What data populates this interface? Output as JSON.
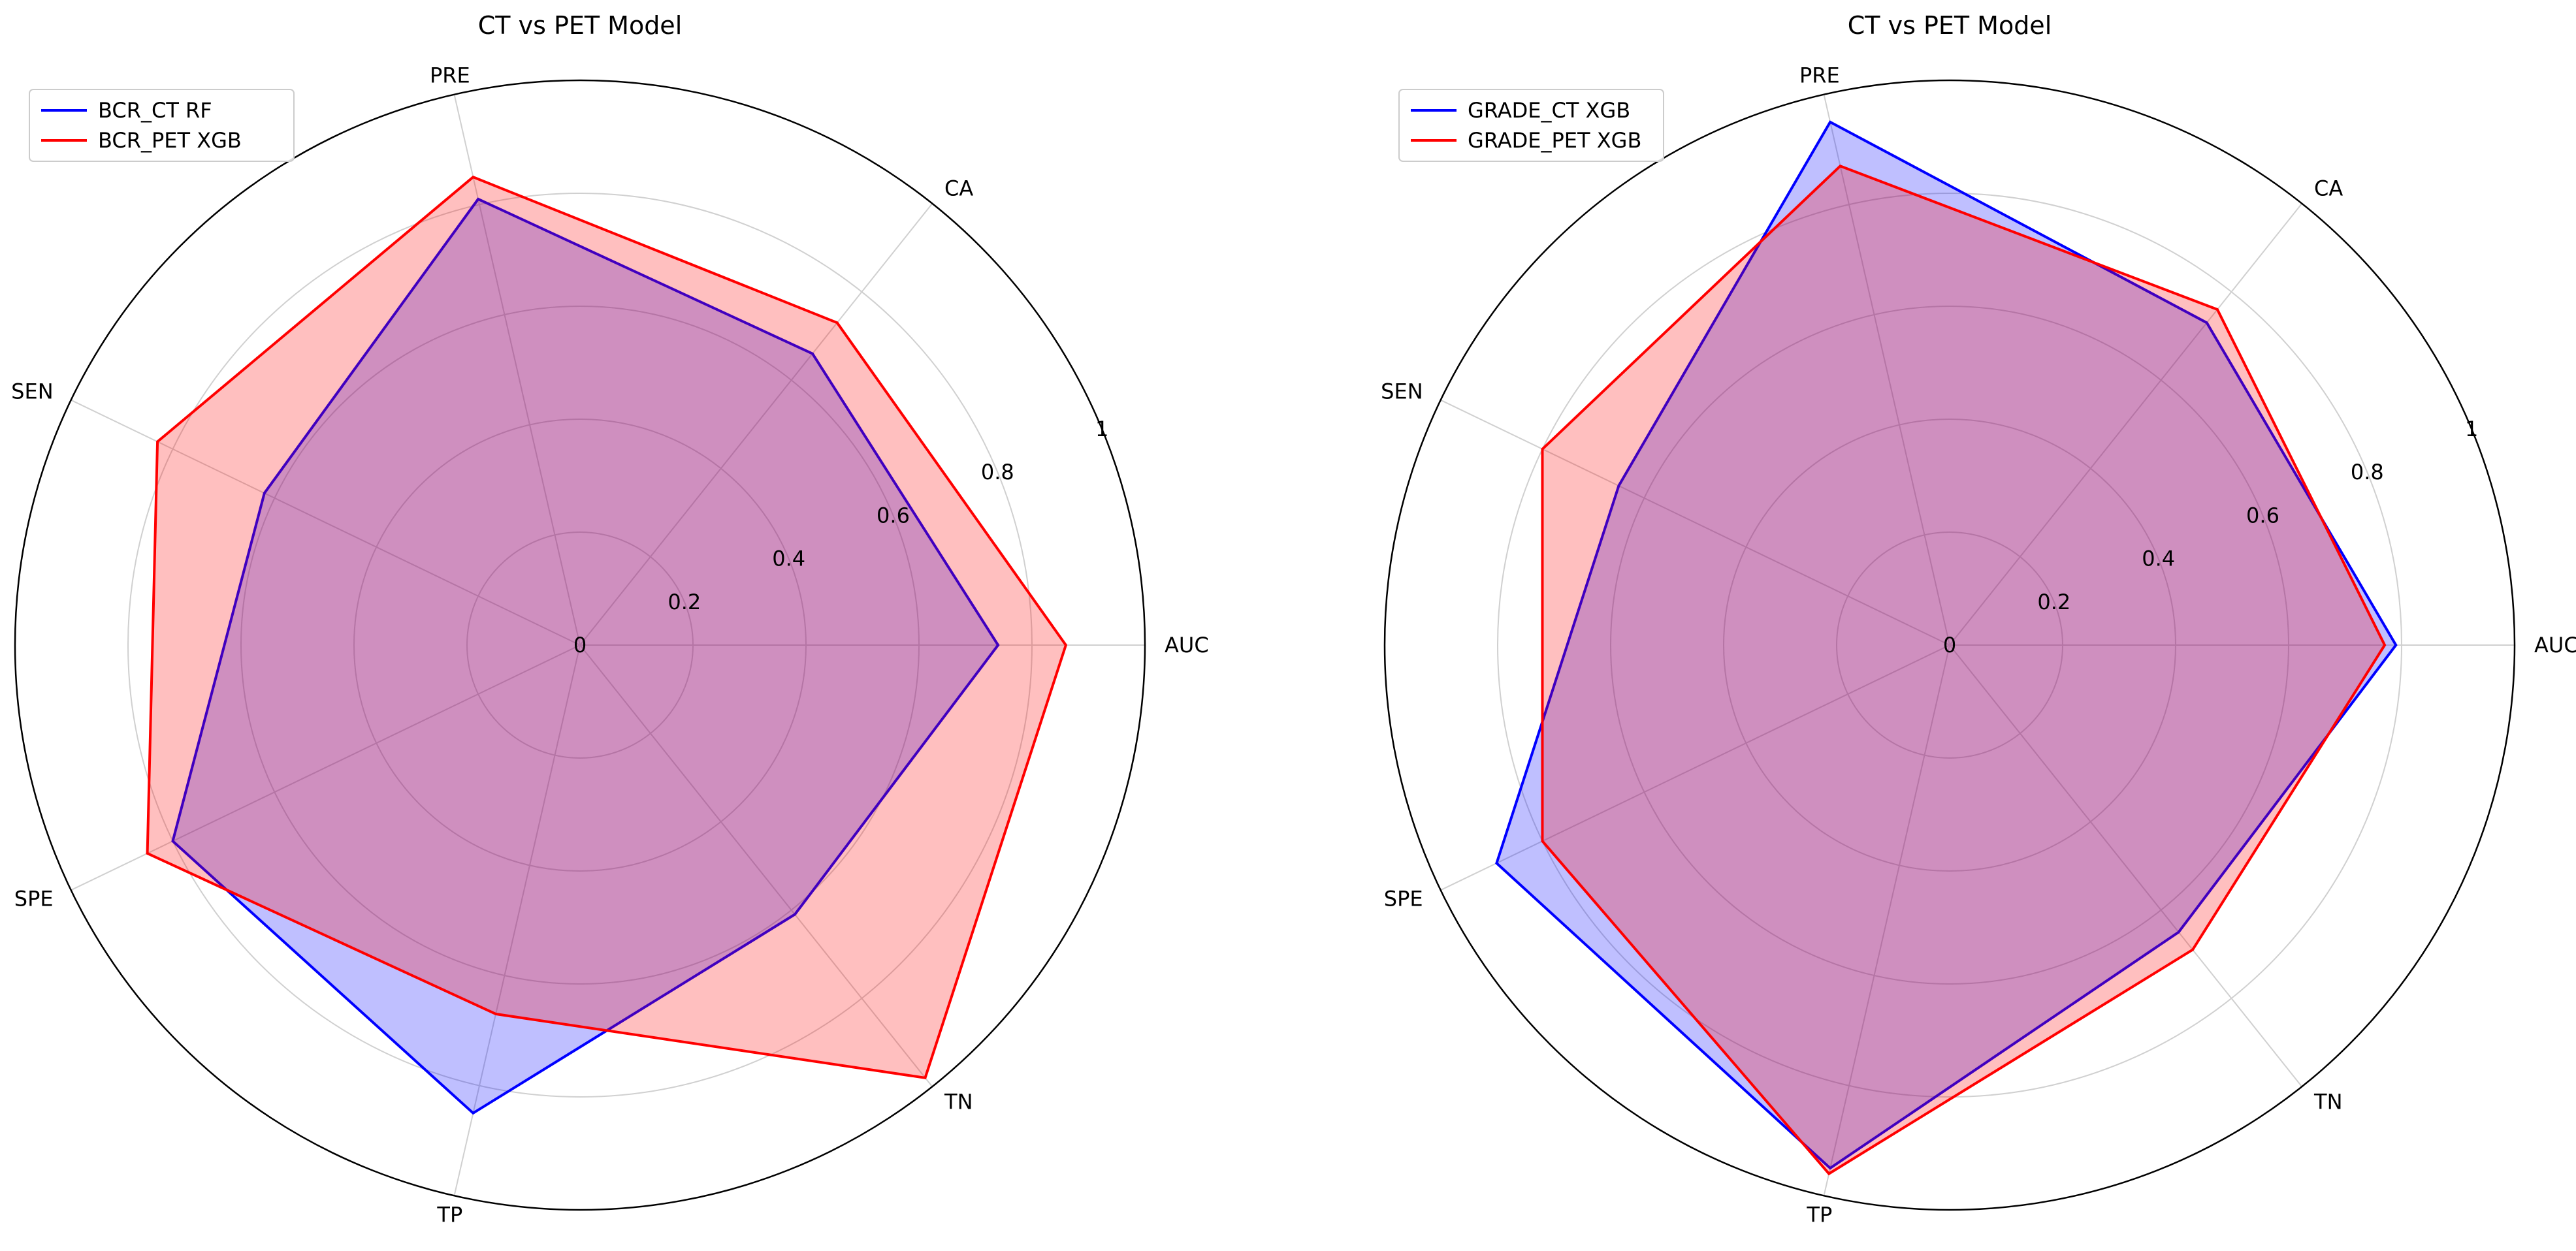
{
  "chart_data": [
    {
      "type": "radar",
      "title": "CT vs PET Model",
      "axes": [
        "AUC",
        "CA",
        "PRE",
        "SEN",
        "SPE",
        "TP",
        "TN"
      ],
      "rticks": [
        0,
        0.2,
        0.4,
        0.6,
        0.8,
        1
      ],
      "rtick_labels": [
        "0",
        "0.2",
        "0.4",
        "0.6",
        "0.8",
        "1"
      ],
      "rlim": [
        0,
        1
      ],
      "grid": true,
      "legend_position": "top-left",
      "series": [
        {
          "name": "BCR_CT RF",
          "color": "#0000ff",
          "values": [
            0.74,
            0.66,
            0.81,
            0.62,
            0.8,
            0.85,
            0.61
          ]
        },
        {
          "name": "BCR_PET XGB",
          "color": "#ff0000",
          "values": [
            0.86,
            0.73,
            0.85,
            0.83,
            0.85,
            0.67,
            0.98
          ]
        }
      ]
    },
    {
      "type": "radar",
      "title": "CT vs PET Model",
      "axes": [
        "AUC",
        "CA",
        "PRE",
        "SEN",
        "SPE",
        "TP",
        "TN"
      ],
      "rticks": [
        0,
        0.2,
        0.4,
        0.6,
        0.8,
        1
      ],
      "rtick_labels": [
        "0",
        "0.2",
        "0.4",
        "0.6",
        "0.8",
        "1"
      ],
      "rlim": [
        0,
        1
      ],
      "grid": true,
      "legend_position": "top-left",
      "series": [
        {
          "name": "GRADE_CT XGB",
          "color": "#0000ff",
          "values": [
            0.79,
            0.73,
            0.95,
            0.65,
            0.89,
            0.95,
            0.65
          ]
        },
        {
          "name": "GRADE_PET XGB",
          "color": "#ff0000",
          "values": [
            0.77,
            0.76,
            0.87,
            0.8,
            0.8,
            0.96,
            0.69
          ]
        }
      ]
    }
  ]
}
